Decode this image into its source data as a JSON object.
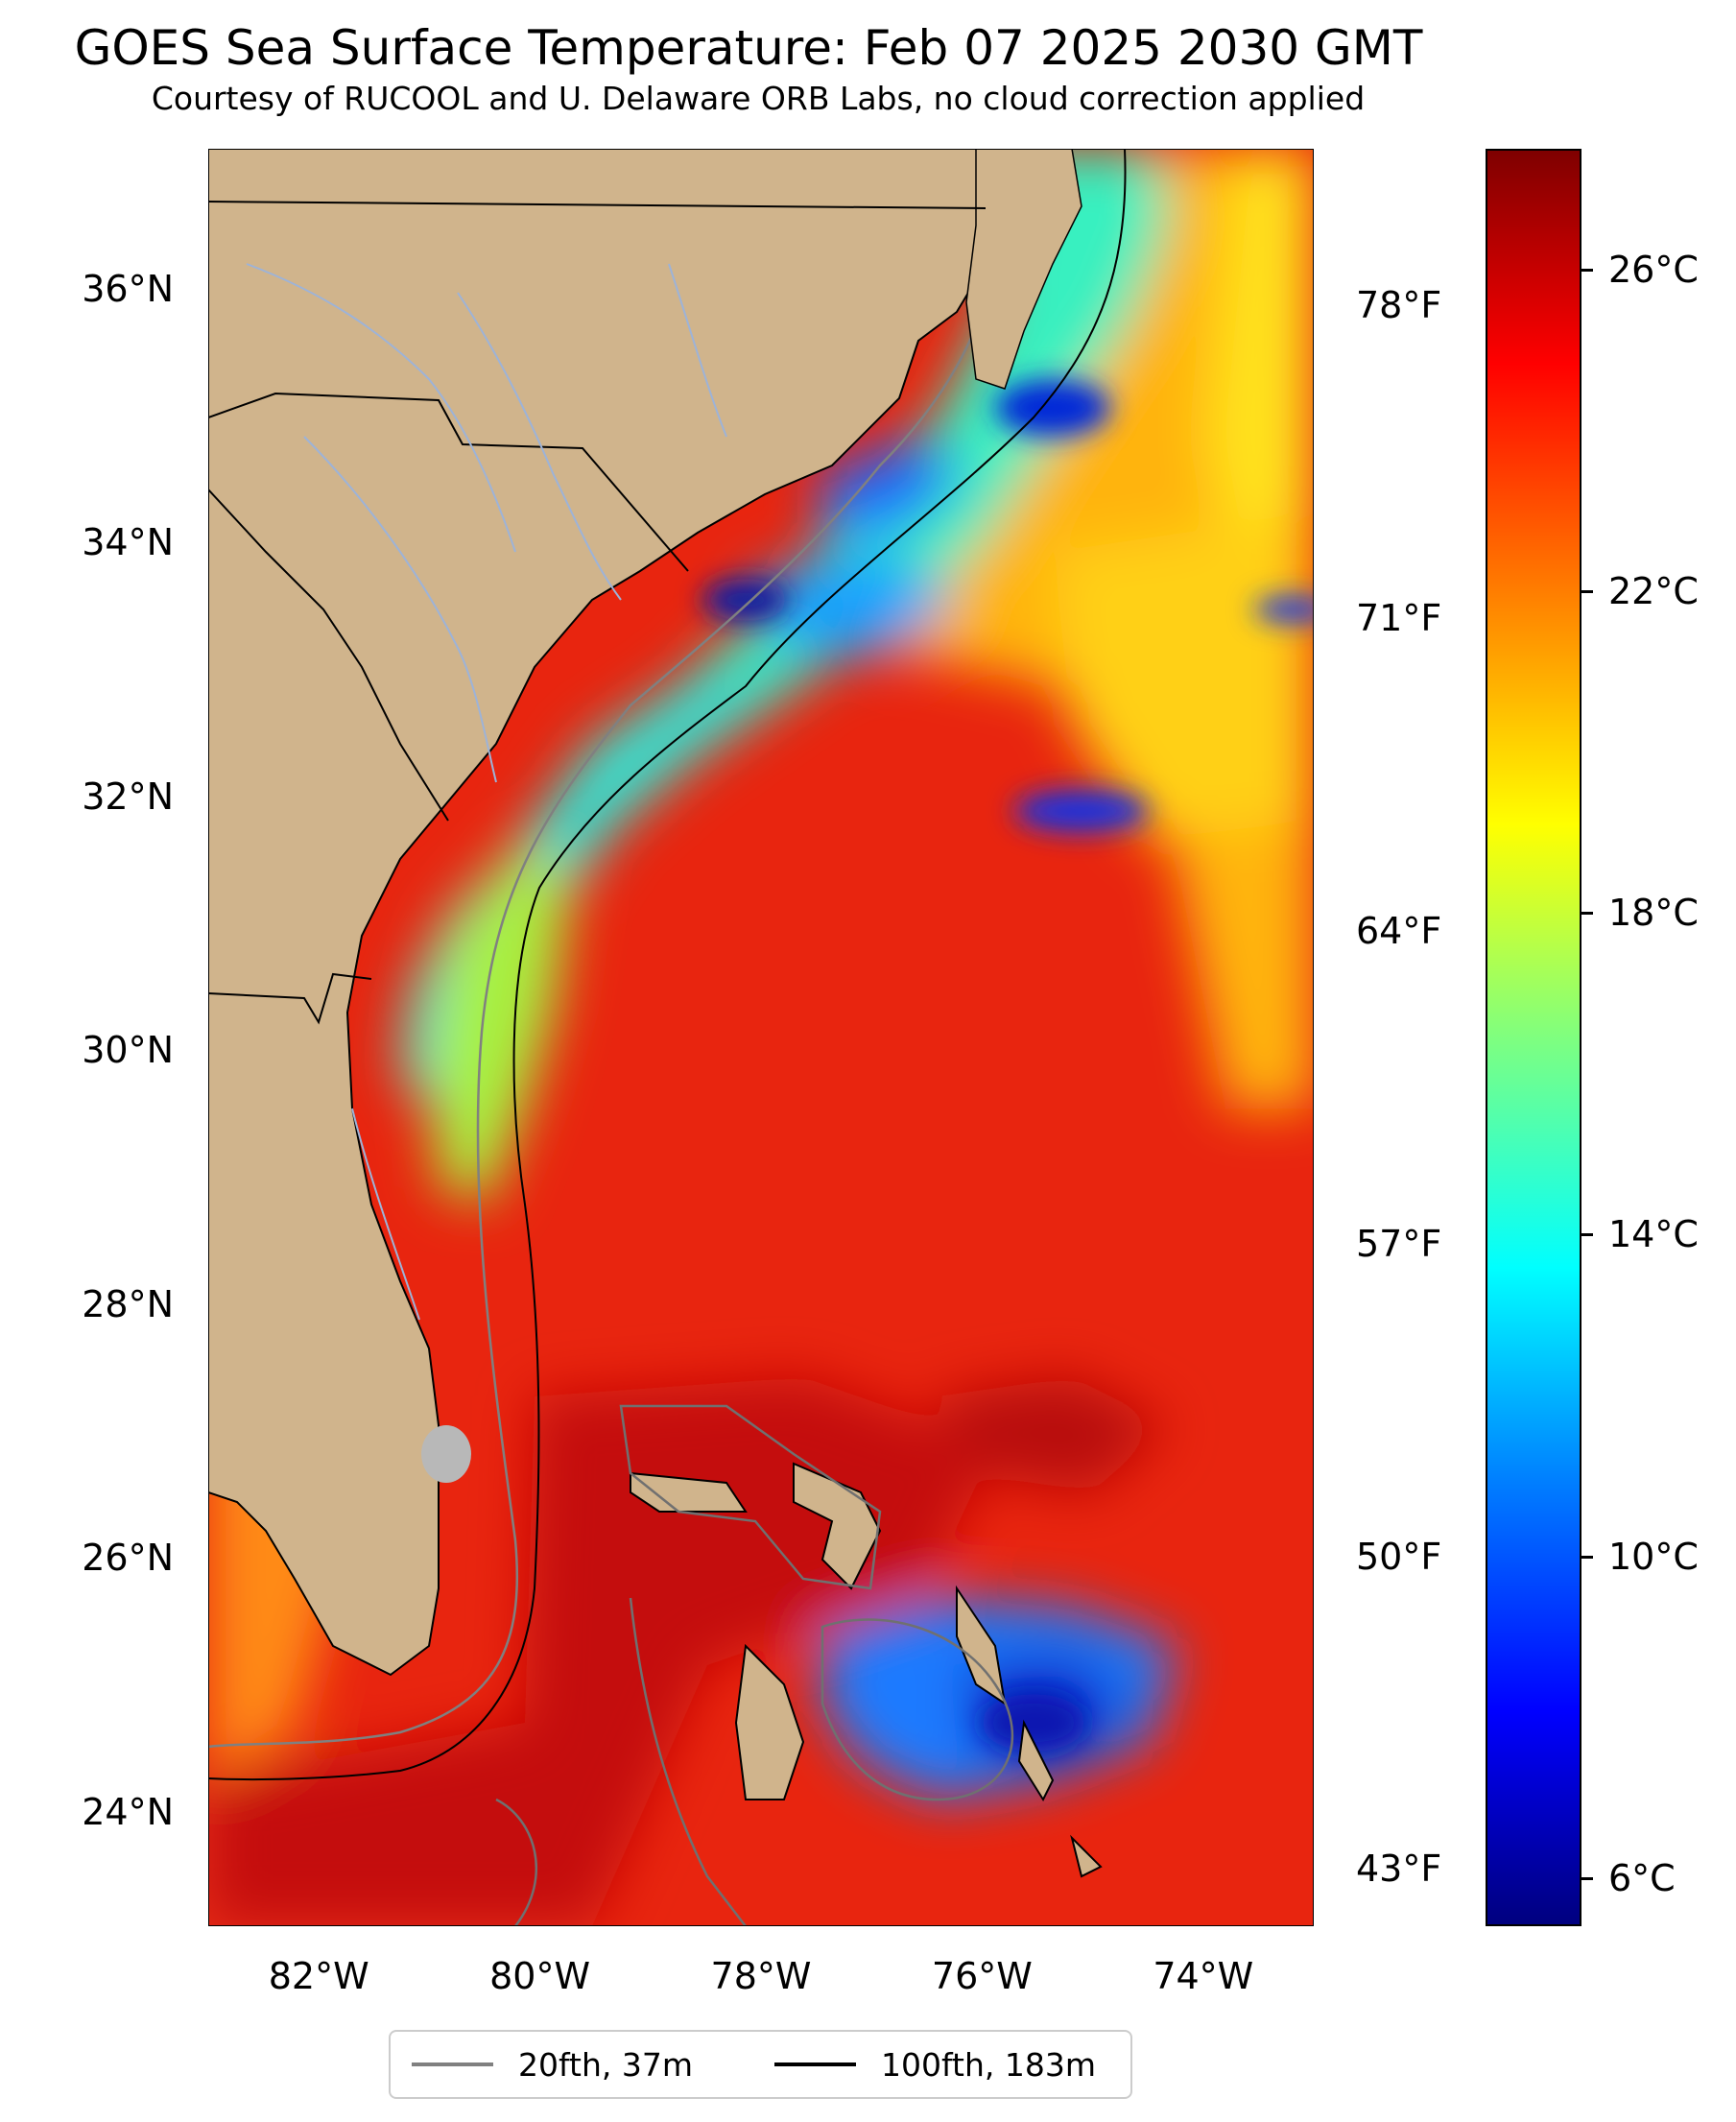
{
  "title": "GOES Sea Surface Temperature: Feb 07 2025 2030 GMT",
  "subtitle": "Courtesy of RUCOOL and U. Delaware ORB Labs, no cloud correction applied",
  "map": {
    "lat_range": [
      23.1,
      37.1
    ],
    "lon_range": [
      -83.0,
      -73.0
    ],
    "lat_ticks": [
      "24°N",
      "26°N",
      "28°N",
      "30°N",
      "32°N",
      "34°N",
      "36°N"
    ],
    "lon_ticks": [
      "82°W",
      "80°W",
      "78°W",
      "76°W",
      "74°W"
    ],
    "fahrenheit_ticks": [
      "43°F",
      "50°F",
      "57°F",
      "64°F",
      "71°F",
      "78°F"
    ],
    "land_color": "#d0b48c",
    "ocean_warm_color": "#e8220e"
  },
  "colorbar": {
    "range_c": [
      5.4,
      27.5
    ],
    "tick_labels": [
      "6°C",
      "10°C",
      "14°C",
      "18°C",
      "22°C",
      "26°C"
    ],
    "colormap": "jet"
  },
  "legend": {
    "items": [
      {
        "label": "20fth, 37m",
        "color": "#808080"
      },
      {
        "label": "100fth, 183m",
        "color": "#000000"
      }
    ]
  }
}
